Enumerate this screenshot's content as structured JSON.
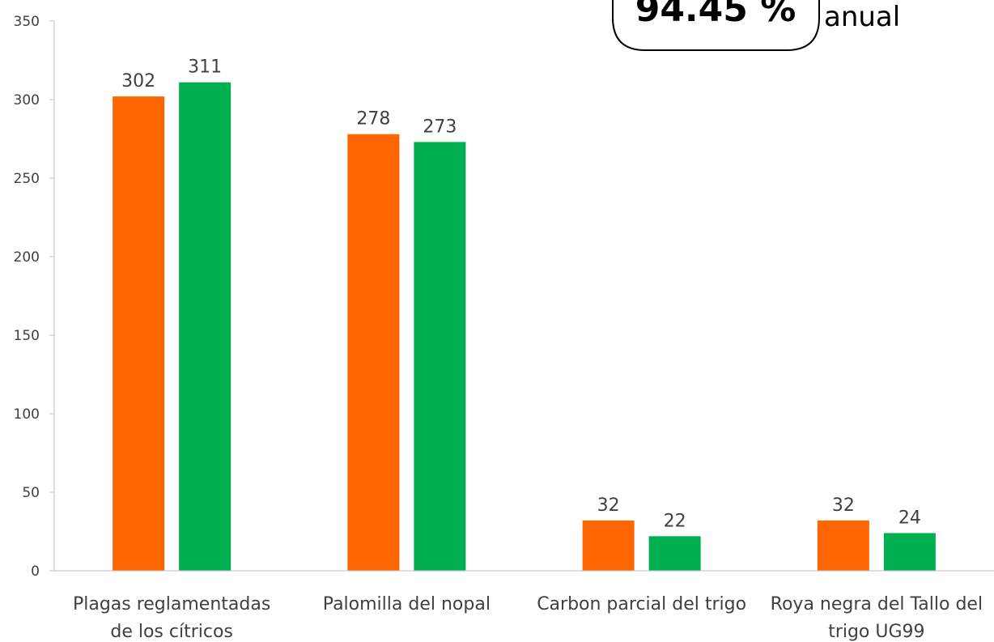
{
  "chart_data": {
    "type": "bar",
    "categories": [
      [
        "Plagas reglamentadas",
        "de los cítricos"
      ],
      [
        "Palomilla del nopal"
      ],
      [
        "Carbon parcial del trigo"
      ],
      [
        "Roya negra del Tallo del",
        "trigo UG99"
      ]
    ],
    "series": [
      {
        "values": [
          302,
          278,
          32,
          32
        ],
        "color": "#FF6600"
      },
      {
        "values": [
          311,
          273,
          22,
          24
        ],
        "color": "#00B050"
      }
    ],
    "ylim": [
      0,
      350
    ],
    "yticks": [
      0,
      50,
      100,
      150,
      200,
      250,
      300,
      350
    ],
    "grid": false,
    "legend": "none"
  },
  "callout": {
    "value": "94.45 %",
    "text": "anual"
  }
}
